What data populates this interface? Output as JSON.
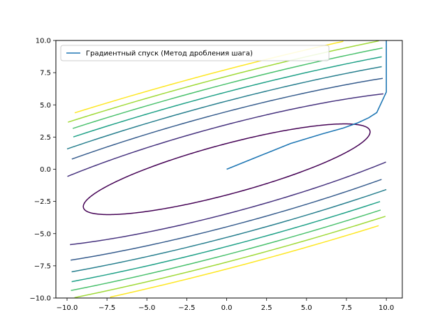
{
  "chart_data": {
    "type": "line",
    "title": "",
    "xlabel": "",
    "ylabel": "",
    "xlim": [
      -10,
      10
    ],
    "ylim": [
      -10,
      10
    ],
    "x_ticks": [
      -10.0,
      -7.5,
      -5.0,
      -2.5,
      0.0,
      2.5,
      5.0,
      7.5,
      10.0
    ],
    "y_ticks": [
      -10.0,
      -7.5,
      -5.0,
      -2.5,
      0.0,
      2.5,
      5.0,
      7.5,
      10.0
    ],
    "x_tick_labels": [
      "−10.0",
      "−7.5",
      "−5.0",
      "−2.5",
      "0.0",
      "2.5",
      "5.0",
      "7.5",
      "10.0"
    ],
    "y_tick_labels": [
      "−10.0",
      "−7.5",
      "−5.0",
      "−2.5",
      "0.0",
      "2.5",
      "5.0",
      "7.5",
      "10.0"
    ],
    "grid": false,
    "legend": {
      "placement": "upper-left",
      "entries": [
        "Градиентный спуск (Метод дробления шага)"
      ]
    },
    "series": [
      {
        "name": "Градиентный спуск (Метод дробления шага)",
        "color": "#1f77b4",
        "x": [
          10.0,
          10.0,
          10.0,
          9.4,
          8.9,
          8.2,
          7.3,
          6.0,
          4.0,
          2.0,
          0.0
        ],
        "y": [
          10.0,
          8.0,
          6.0,
          4.4,
          4.0,
          3.6,
          3.2,
          2.75,
          2.0,
          1.0,
          0.0
        ]
      }
    ],
    "contours": [
      {
        "color": "#440154",
        "note": "outermost levels only partly visible"
      },
      {
        "color": "#46327e",
        "level_index": 1
      },
      {
        "color": "#365c8d",
        "level_index": 2
      },
      {
        "color": "#277f8e",
        "level_index": 3
      },
      {
        "color": "#1fa187",
        "level_index": 4
      },
      {
        "color": "#4ac16d",
        "level_index": 5
      },
      {
        "color": "#a0da39",
        "level_index": 6
      },
      {
        "color": "#fde725",
        "level_index": 7
      }
    ]
  }
}
